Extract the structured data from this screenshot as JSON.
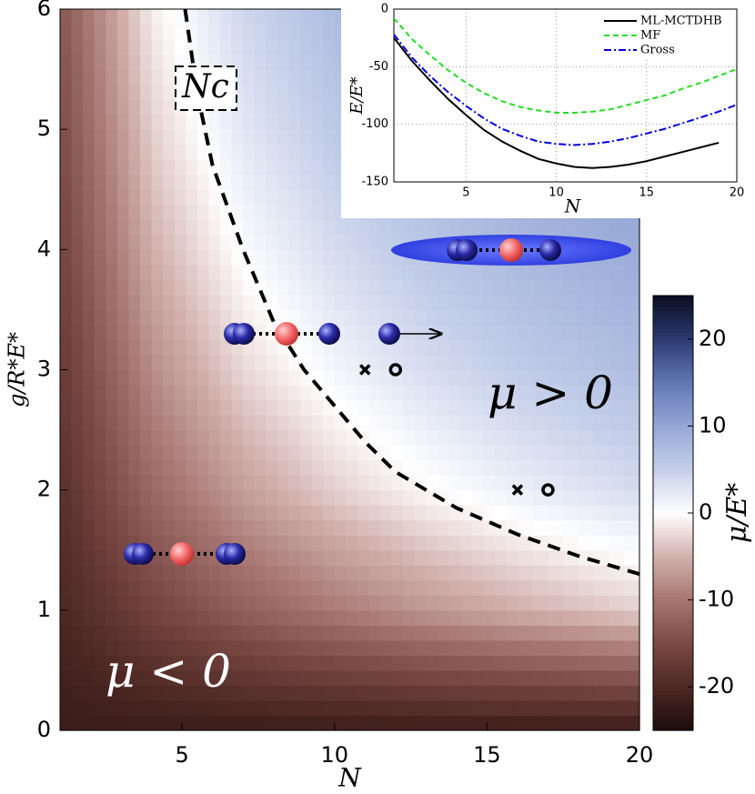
{
  "chart_data": [
    {
      "type": "contour",
      "xlabel": "N",
      "ylabel": "g/R*E*",
      "x": [
        1,
        4,
        7,
        10,
        13,
        16,
        20
      ],
      "y": [
        0,
        1,
        2,
        3,
        4,
        5,
        6
      ],
      "z": [
        [
          -22.0,
          -22.0,
          -22.0,
          -22.0,
          -22.0,
          -22.0,
          -22.0
        ],
        [
          -20.3,
          -15.9,
          -12.4,
          -9.6,
          -7.2,
          -5.2,
          -3.0
        ],
        [
          -18.7,
          -11.4,
          -6.5,
          -3.0,
          -0.4,
          1.7,
          3.8
        ],
        [
          -17.3,
          -8.0,
          -2.5,
          1.0,
          3.6,
          5.5,
          7.4
        ],
        [
          -15.9,
          -5.2,
          0.4,
          3.8,
          6.2,
          7.9,
          9.5
        ],
        [
          -14.7,
          -3.0,
          2.6,
          5.8,
          8.0,
          9.5,
          11.0
        ],
        [
          -13.5,
          -1.2,
          4.3,
          7.4,
          9.3,
          10.7,
          12.0
        ]
      ],
      "xlim": [
        1,
        20
      ],
      "xticks": [
        5,
        10,
        15,
        20
      ],
      "ylim": [
        0,
        6
      ],
      "yticks": [
        0,
        1,
        2,
        3,
        4,
        5,
        6
      ],
      "colorbar": {
        "label": "μ/E*",
        "clim": [
          -25,
          25
        ],
        "ticks": [
          -20,
          -10,
          0,
          10,
          20
        ],
        "colors": [
          "#1c0c0b",
          "#4e2824",
          "#7a4945",
          "#a57571",
          "#d2b0ac",
          "#ffffff",
          "#c6d0ea",
          "#95a7d6",
          "#6278b5",
          "#2d3a72",
          "#0b0d22"
        ]
      },
      "series": [
        {
          "label": "Nc",
          "color": "#000000",
          "x": [
            5.1,
            5.5,
            6,
            7,
            8,
            9,
            10,
            11,
            12,
            13,
            14,
            16,
            18,
            20
          ],
          "y": [
            6,
            5.3,
            4.7,
            4,
            3.4,
            3,
            2.7,
            2.4,
            2.15,
            2,
            1.85,
            1.63,
            1.45,
            1.3
          ]
        }
      ],
      "points": [
        {
          "marker": "x",
          "x": [
            11,
            16
          ],
          "y": [
            3,
            2
          ]
        },
        {
          "marker": "o",
          "x": [
            12,
            17
          ],
          "y": [
            3,
            2
          ]
        }
      ],
      "annotations": [
        "μ > 0",
        "μ < 0"
      ]
    },
    {
      "type": "line",
      "xlabel": "N",
      "ylabel": "E/E*",
      "xlim": [
        1,
        20
      ],
      "xticks": [
        5,
        10,
        15,
        20
      ],
      "ylim": [
        -150,
        0
      ],
      "yticks": [
        0,
        -50,
        -100,
        -150
      ],
      "grid": true,
      "legend": "upper right",
      "series": [
        {
          "name": "ML-MCTDHB",
          "color": "#000000",
          "style": "solid",
          "x": [
            1,
            2,
            3,
            4,
            5,
            6,
            7,
            8,
            9,
            10,
            11,
            12,
            13,
            14,
            15,
            16,
            17,
            18,
            19
          ],
          "values": [
            -25,
            -45,
            -62,
            -78,
            -92,
            -105,
            -115,
            -123,
            -130,
            -134,
            -137,
            -138,
            -137,
            -135,
            -132,
            -128,
            -124,
            -120,
            -116
          ]
        },
        {
          "name": "MF",
          "color": "#22dd22",
          "style": "dashed",
          "x": [
            1,
            2,
            3,
            4,
            5,
            6,
            7,
            8,
            9,
            10,
            11,
            12,
            13,
            14,
            15,
            16,
            17,
            18,
            19,
            20
          ],
          "values": [
            -8,
            -26,
            -40,
            -53,
            -64,
            -73,
            -80,
            -85,
            -88,
            -90,
            -90,
            -89,
            -87,
            -83,
            -79,
            -75,
            -69,
            -64,
            -58,
            -52
          ]
        },
        {
          "name": "Gross",
          "color": "#0000dd",
          "style": "dashdot",
          "x": [
            1,
            2,
            3,
            4,
            5,
            6,
            7,
            8,
            9,
            10,
            11,
            12,
            13,
            14,
            15,
            16,
            17,
            18,
            19,
            20
          ],
          "values": [
            -22,
            -42,
            -58,
            -72,
            -84,
            -95,
            -104,
            -110,
            -115,
            -117,
            -118,
            -117,
            -115,
            -112,
            -108,
            -104,
            -99,
            -94,
            -89,
            -83
          ]
        }
      ]
    }
  ]
}
